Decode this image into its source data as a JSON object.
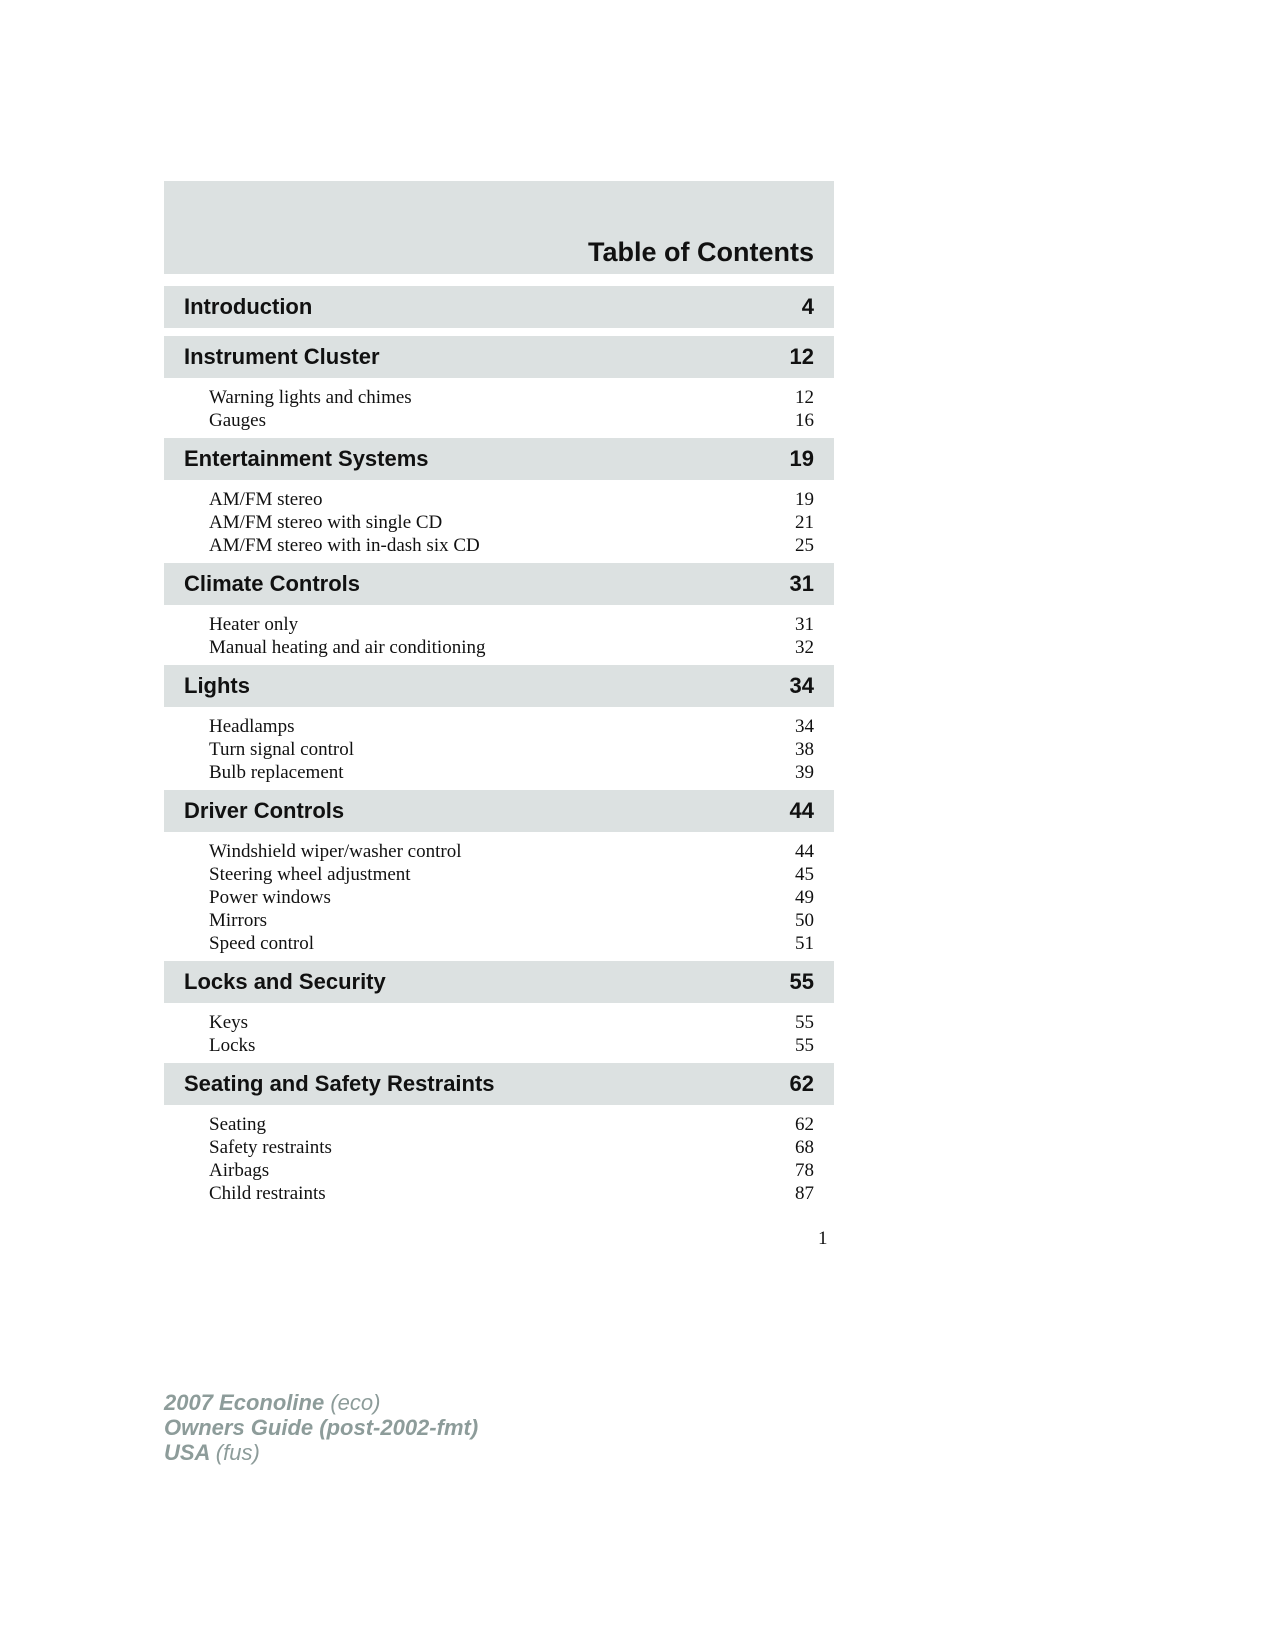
{
  "title": "Table of Contents",
  "sections": [
    {
      "title": "Introduction",
      "page": "4",
      "items": []
    },
    {
      "title": "Instrument Cluster",
      "page": "12",
      "items": [
        {
          "label": "Warning lights and chimes",
          "page": "12"
        },
        {
          "label": "Gauges",
          "page": "16"
        }
      ]
    },
    {
      "title": "Entertainment Systems",
      "page": "19",
      "items": [
        {
          "label": "AM/FM stereo",
          "page": "19"
        },
        {
          "label": "AM/FM stereo with single CD",
          "page": "21"
        },
        {
          "label": "AM/FM stereo with in-dash six CD",
          "page": "25"
        }
      ]
    },
    {
      "title": "Climate Controls",
      "page": "31",
      "items": [
        {
          "label": "Heater only",
          "page": "31"
        },
        {
          "label": "Manual heating and air conditioning",
          "page": "32"
        }
      ]
    },
    {
      "title": "Lights",
      "page": "34",
      "items": [
        {
          "label": "Headlamps",
          "page": "34"
        },
        {
          "label": "Turn signal control",
          "page": "38"
        },
        {
          "label": "Bulb replacement",
          "page": "39"
        }
      ]
    },
    {
      "title": "Driver Controls",
      "page": "44",
      "items": [
        {
          "label": "Windshield wiper/washer control",
          "page": "44"
        },
        {
          "label": "Steering wheel adjustment",
          "page": "45"
        },
        {
          "label": "Power windows",
          "page": "49"
        },
        {
          "label": "Mirrors",
          "page": "50"
        },
        {
          "label": "Speed control",
          "page": "51"
        }
      ]
    },
    {
      "title": "Locks and Security",
      "page": "55",
      "items": [
        {
          "label": "Keys",
          "page": "55"
        },
        {
          "label": "Locks",
          "page": "55"
        }
      ]
    },
    {
      "title": "Seating and Safety Restraints",
      "page": "62",
      "items": [
        {
          "label": "Seating",
          "page": "62"
        },
        {
          "label": "Safety restraints",
          "page": "68"
        },
        {
          "label": "Airbags",
          "page": "78"
        },
        {
          "label": "Child restraints",
          "page": "87"
        }
      ]
    }
  ],
  "page_number": "1",
  "footer": {
    "line1": {
      "main": "2007 Econoline",
      "code": "(eco)"
    },
    "line2": {
      "main": "Owners Guide (post-2002-fmt)",
      "code": ""
    },
    "line3": {
      "main": "USA",
      "code": "(fus)"
    }
  },
  "colors": {
    "band": "#dce1e1",
    "footer_text": "#8d9c9a"
  }
}
